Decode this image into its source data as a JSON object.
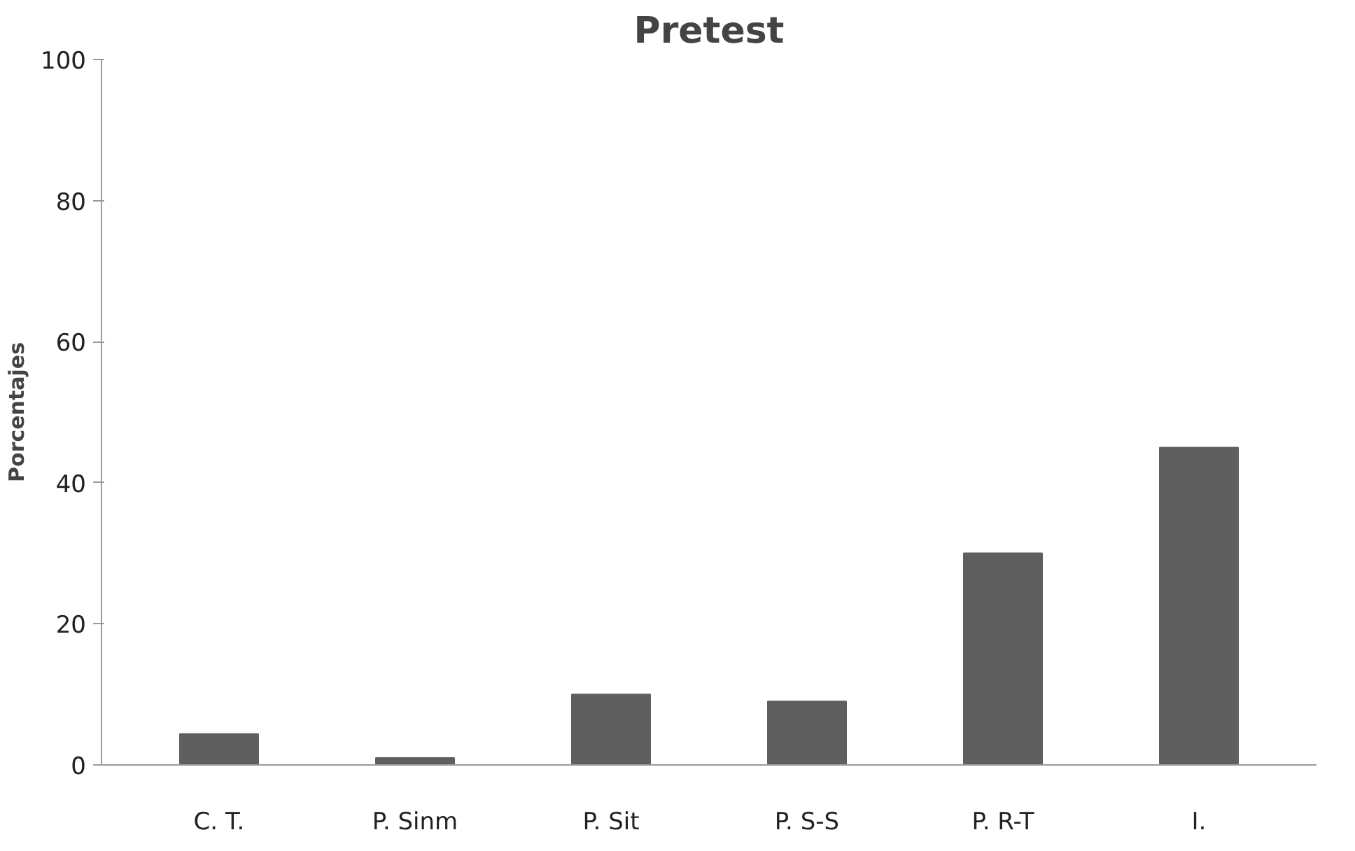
{
  "chart_data": {
    "type": "bar",
    "title": "Pretest",
    "ylabel": "Porcentajes",
    "categories": [
      "C. T.",
      "P. Sinm",
      "P. Sit",
      "P. S-S",
      "P. R-T",
      "I."
    ],
    "values": [
      4.4,
      1,
      10,
      9,
      30,
      45
    ],
    "color": "#5f5f5f",
    "ylim": [
      0,
      100
    ],
    "yticks": [
      0,
      20,
      40,
      60,
      80,
      100
    ],
    "grid": false
  }
}
